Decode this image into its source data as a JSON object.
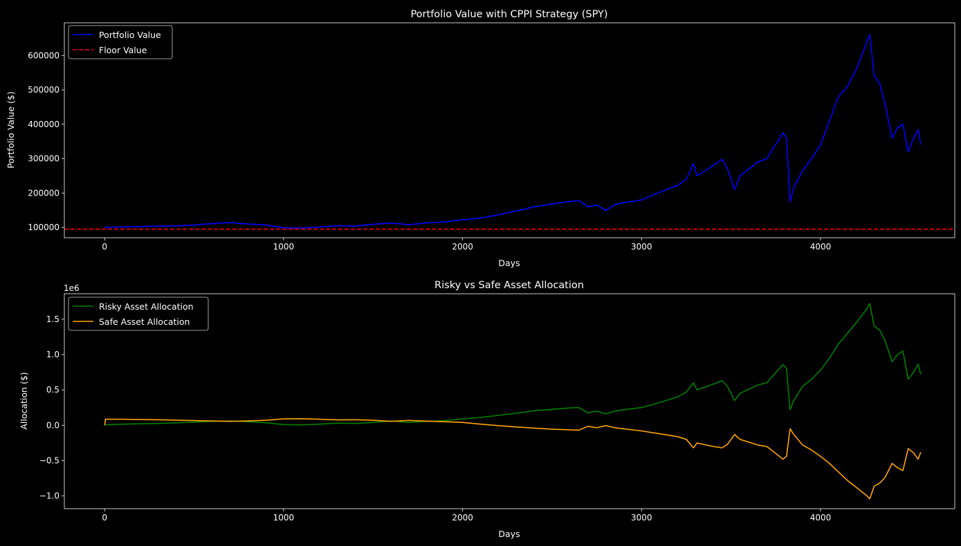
{
  "chart_data": [
    {
      "type": "line",
      "title": "Portfolio Value with CPPI Strategy (SPY)",
      "xlabel": "Days",
      "ylabel": "Portfolio Value ($)",
      "xlim": [
        -225,
        4750
      ],
      "ylim": [
        70000,
        695000
      ],
      "xticks": [
        0,
        1000,
        2000,
        3000,
        4000
      ],
      "yticks": [
        100000,
        200000,
        300000,
        400000,
        500000,
        600000
      ],
      "legend_position": "top-left",
      "grid": false,
      "series": [
        {
          "name": "Portfolio Value",
          "color": "#0000ff",
          "style": "solid",
          "points": [
            [
              0,
              100000
            ],
            [
              100,
              101500
            ],
            [
              200,
              102500
            ],
            [
              300,
              103500
            ],
            [
              400,
              104500
            ],
            [
              500,
              107000
            ],
            [
              600,
              111000
            ],
            [
              700,
              114000
            ],
            [
              800,
              110000
            ],
            [
              900,
              107000
            ],
            [
              1000,
              99000
            ],
            [
              1100,
              98500
            ],
            [
              1200,
              101000
            ],
            [
              1300,
              105000
            ],
            [
              1400,
              104000
            ],
            [
              1500,
              109000
            ],
            [
              1600,
              113000
            ],
            [
              1700,
              108000
            ],
            [
              1800,
              113000
            ],
            [
              1900,
              116000
            ],
            [
              2000,
              122000
            ],
            [
              2100,
              127000
            ],
            [
              2200,
              137000
            ],
            [
              2300,
              148000
            ],
            [
              2400,
              160000
            ],
            [
              2500,
              168000
            ],
            [
              2600,
              176000
            ],
            [
              2650,
              178000
            ],
            [
              2700,
              160000
            ],
            [
              2750,
              165000
            ],
            [
              2800,
              150000
            ],
            [
              2850,
              166000
            ],
            [
              2900,
              172000
            ],
            [
              3000,
              180000
            ],
            [
              3100,
              202000
            ],
            [
              3200,
              222000
            ],
            [
              3250,
              240000
            ],
            [
              3290,
              285000
            ],
            [
              3310,
              250000
            ],
            [
              3400,
              280000
            ],
            [
              3450,
              298000
            ],
            [
              3480,
              270000
            ],
            [
              3520,
              210000
            ],
            [
              3550,
              250000
            ],
            [
              3650,
              290000
            ],
            [
              3700,
              300000
            ],
            [
              3790,
              375000
            ],
            [
              3810,
              360000
            ],
            [
              3830,
              175000
            ],
            [
              3850,
              215000
            ],
            [
              3900,
              265000
            ],
            [
              3950,
              300000
            ],
            [
              4000,
              340000
            ],
            [
              4050,
              410000
            ],
            [
              4100,
              480000
            ],
            [
              4150,
              510000
            ],
            [
              4200,
              560000
            ],
            [
              4230,
              600000
            ],
            [
              4260,
              640000
            ],
            [
              4275,
              660000
            ],
            [
              4300,
              540000
            ],
            [
              4330,
              520000
            ],
            [
              4360,
              460000
            ],
            [
              4400,
              360000
            ],
            [
              4430,
              390000
            ],
            [
              4460,
              400000
            ],
            [
              4490,
              320000
            ],
            [
              4520,
              360000
            ],
            [
              4545,
              385000
            ],
            [
              4560,
              340000
            ]
          ]
        },
        {
          "name": "Floor Value",
          "color": "#ff0000",
          "style": "dashed",
          "constant": 95000
        }
      ]
    },
    {
      "type": "line",
      "title": "Risky vs Safe Asset Allocation",
      "xlabel": "Days",
      "ylabel": "Allocation ($)",
      "offset_text": "1e6",
      "xlim": [
        -225,
        4750
      ],
      "ylim": [
        -1.18,
        1.86
      ],
      "xticks": [
        0,
        1000,
        2000,
        3000,
        4000
      ],
      "yticks": [
        -1.0,
        -0.5,
        0.0,
        0.5,
        1.0,
        1.5
      ],
      "ytick_labels": [
        "−1.0",
        "−0.5",
        "0.0",
        "0.5",
        "1.0",
        "1.5"
      ],
      "legend_position": "top-left",
      "grid": false,
      "series": [
        {
          "name": "Risky Asset Allocation",
          "color": "#008000",
          "points": [
            [
              0,
              0.005
            ],
            [
              100,
              0.015
            ],
            [
              200,
              0.02
            ],
            [
              300,
              0.025
            ],
            [
              400,
              0.035
            ],
            [
              500,
              0.045
            ],
            [
              600,
              0.055
            ],
            [
              700,
              0.06
            ],
            [
              800,
              0.05
            ],
            [
              900,
              0.035
            ],
            [
              1000,
              0.01
            ],
            [
              1100,
              0.005
            ],
            [
              1200,
              0.015
            ],
            [
              1300,
              0.03
            ],
            [
              1400,
              0.025
            ],
            [
              1500,
              0.04
            ],
            [
              1600,
              0.06
            ],
            [
              1700,
              0.04
            ],
            [
              1800,
              0.055
            ],
            [
              1900,
              0.065
            ],
            [
              2000,
              0.09
            ],
            [
              2100,
              0.11
            ],
            [
              2200,
              0.14
            ],
            [
              2300,
              0.17
            ],
            [
              2400,
              0.205
            ],
            [
              2500,
              0.225
            ],
            [
              2600,
              0.245
            ],
            [
              2650,
              0.25
            ],
            [
              2700,
              0.175
            ],
            [
              2750,
              0.2
            ],
            [
              2800,
              0.16
            ],
            [
              2850,
              0.2
            ],
            [
              2900,
              0.22
            ],
            [
              3000,
              0.25
            ],
            [
              3100,
              0.32
            ],
            [
              3200,
              0.4
            ],
            [
              3250,
              0.47
            ],
            [
              3290,
              0.6
            ],
            [
              3310,
              0.5
            ],
            [
              3400,
              0.58
            ],
            [
              3450,
              0.63
            ],
            [
              3480,
              0.55
            ],
            [
              3520,
              0.35
            ],
            [
              3550,
              0.45
            ],
            [
              3650,
              0.57
            ],
            [
              3700,
              0.6
            ],
            [
              3790,
              0.86
            ],
            [
              3810,
              0.8
            ],
            [
              3830,
              0.22
            ],
            [
              3850,
              0.35
            ],
            [
              3900,
              0.55
            ],
            [
              3950,
              0.65
            ],
            [
              4000,
              0.78
            ],
            [
              4050,
              0.95
            ],
            [
              4100,
              1.15
            ],
            [
              4150,
              1.3
            ],
            [
              4200,
              1.45
            ],
            [
              4230,
              1.55
            ],
            [
              4260,
              1.65
            ],
            [
              4275,
              1.72
            ],
            [
              4300,
              1.4
            ],
            [
              4330,
              1.35
            ],
            [
              4360,
              1.2
            ],
            [
              4400,
              0.9
            ],
            [
              4430,
              1.0
            ],
            [
              4460,
              1.05
            ],
            [
              4490,
              0.65
            ],
            [
              4520,
              0.75
            ],
            [
              4545,
              0.86
            ],
            [
              4560,
              0.72
            ]
          ]
        },
        {
          "name": "Safe Asset Allocation",
          "color": "#ffa500",
          "points": [
            [
              0,
              0.0
            ],
            [
              5,
              0.085
            ],
            [
              100,
              0.085
            ],
            [
              200,
              0.08
            ],
            [
              300,
              0.078
            ],
            [
              400,
              0.072
            ],
            [
              500,
              0.065
            ],
            [
              600,
              0.06
            ],
            [
              700,
              0.055
            ],
            [
              800,
              0.06
            ],
            [
              900,
              0.07
            ],
            [
              1000,
              0.09
            ],
            [
              1100,
              0.093
            ],
            [
              1200,
              0.085
            ],
            [
              1300,
              0.075
            ],
            [
              1400,
              0.078
            ],
            [
              1500,
              0.07
            ],
            [
              1600,
              0.055
            ],
            [
              1700,
              0.068
            ],
            [
              1800,
              0.058
            ],
            [
              1900,
              0.05
            ],
            [
              2000,
              0.04
            ],
            [
              2100,
              0.015
            ],
            [
              2200,
              -0.005
            ],
            [
              2300,
              -0.025
            ],
            [
              2400,
              -0.04
            ],
            [
              2500,
              -0.055
            ],
            [
              2600,
              -0.065
            ],
            [
              2650,
              -0.07
            ],
            [
              2700,
              -0.015
            ],
            [
              2750,
              -0.035
            ],
            [
              2800,
              -0.005
            ],
            [
              2850,
              -0.035
            ],
            [
              2900,
              -0.05
            ],
            [
              3000,
              -0.08
            ],
            [
              3100,
              -0.12
            ],
            [
              3200,
              -0.16
            ],
            [
              3250,
              -0.2
            ],
            [
              3290,
              -0.32
            ],
            [
              3310,
              -0.25
            ],
            [
              3400,
              -0.3
            ],
            [
              3450,
              -0.32
            ],
            [
              3480,
              -0.27
            ],
            [
              3520,
              -0.13
            ],
            [
              3550,
              -0.2
            ],
            [
              3650,
              -0.28
            ],
            [
              3700,
              -0.3
            ],
            [
              3790,
              -0.48
            ],
            [
              3810,
              -0.44
            ],
            [
              3830,
              -0.05
            ],
            [
              3850,
              -0.13
            ],
            [
              3900,
              -0.28
            ],
            [
              3950,
              -0.35
            ],
            [
              4000,
              -0.44
            ],
            [
              4050,
              -0.54
            ],
            [
              4100,
              -0.66
            ],
            [
              4150,
              -0.78
            ],
            [
              4200,
              -0.88
            ],
            [
              4230,
              -0.94
            ],
            [
              4260,
              -1.0
            ],
            [
              4275,
              -1.04
            ],
            [
              4300,
              -0.86
            ],
            [
              4330,
              -0.82
            ],
            [
              4360,
              -0.74
            ],
            [
              4400,
              -0.54
            ],
            [
              4430,
              -0.6
            ],
            [
              4460,
              -0.64
            ],
            [
              4490,
              -0.33
            ],
            [
              4520,
              -0.39
            ],
            [
              4545,
              -0.48
            ],
            [
              4560,
              -0.38
            ]
          ]
        }
      ]
    }
  ]
}
